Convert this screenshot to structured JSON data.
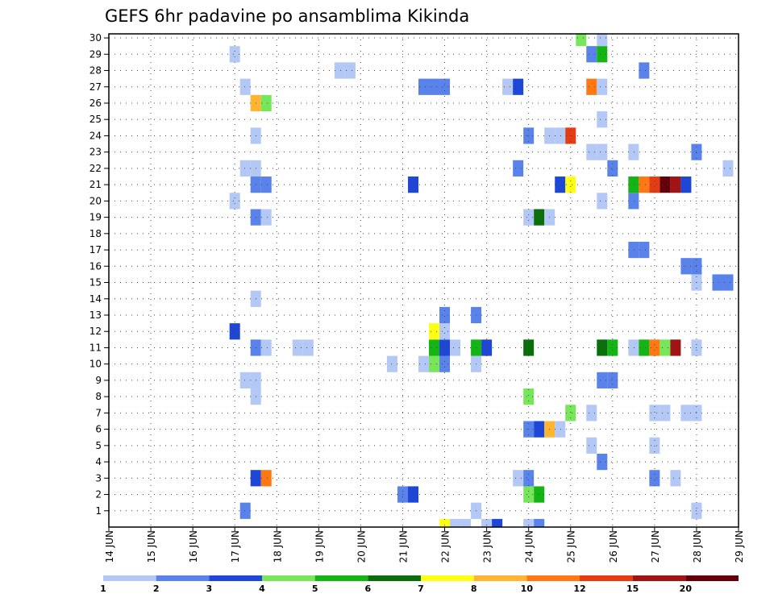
{
  "chart_data": {
    "type": "heatmap",
    "title": "GEFS 6hr padavine po ansamblima Kikinda",
    "x_tick_labels": [
      "14 JUN",
      "15 JUN",
      "16 JUN",
      "17 JUN",
      "18 JUN",
      "19 JUN",
      "20 JUN",
      "21 JUN",
      "22 JUN",
      "23 JUN",
      "24 JUN",
      "25 JUN",
      "26 JUN",
      "27 JUN",
      "28 JUN",
      "29 JUN"
    ],
    "y_tick_labels": [
      1,
      2,
      3,
      4,
      5,
      6,
      7,
      8,
      9,
      10,
      11,
      12,
      13,
      14,
      15,
      16,
      17,
      18,
      19,
      20,
      21,
      22,
      23,
      24,
      25,
      26,
      27,
      28,
      29,
      30
    ],
    "xlim_days": [
      14,
      29
    ],
    "ylim": [
      0,
      30
    ],
    "grid": true,
    "legend": {
      "position": "bottom",
      "labels": [
        "1",
        "2",
        "3",
        "4",
        "5",
        "6",
        "7",
        "8",
        "10",
        "12",
        "15",
        "20"
      ],
      "colors": [
        "#b4c8f5",
        "#5a82eb",
        "#1e46d7",
        "#78e65a",
        "#14b414",
        "#0a6e0a",
        "#ffff14",
        "#ffb432",
        "#ff7814",
        "#e63c14",
        "#a01414",
        "#64000a"
      ]
    },
    "cells": [
      {
        "day": 22.0,
        "member": 0,
        "level": 7
      },
      {
        "day": 22.25,
        "member": 0,
        "level": 1
      },
      {
        "day": 22.5,
        "member": 0,
        "level": 1
      },
      {
        "day": 23.0,
        "member": 0,
        "level": 1
      },
      {
        "day": 23.25,
        "member": 0,
        "level": 3
      },
      {
        "day": 24.0,
        "member": 0,
        "level": 1
      },
      {
        "day": 24.25,
        "member": 0,
        "level": 2
      },
      {
        "day": 17.25,
        "member": 1,
        "level": 2
      },
      {
        "day": 22.75,
        "member": 1,
        "level": 1
      },
      {
        "day": 28.0,
        "member": 1,
        "level": 1
      },
      {
        "day": 21.0,
        "member": 2,
        "level": 2
      },
      {
        "day": 21.25,
        "member": 2,
        "level": 3
      },
      {
        "day": 24.0,
        "member": 2,
        "level": 4
      },
      {
        "day": 24.25,
        "member": 2,
        "level": 5
      },
      {
        "day": 17.5,
        "member": 3,
        "level": 3
      },
      {
        "day": 17.75,
        "member": 3,
        "level": 9
      },
      {
        "day": 23.75,
        "member": 3,
        "level": 1
      },
      {
        "day": 24.0,
        "member": 3,
        "level": 2
      },
      {
        "day": 27.0,
        "member": 3,
        "level": 2
      },
      {
        "day": 27.5,
        "member": 3,
        "level": 1
      },
      {
        "day": 25.75,
        "member": 4,
        "level": 2
      },
      {
        "day": 25.5,
        "member": 5,
        "level": 1
      },
      {
        "day": 27.0,
        "member": 5,
        "level": 1
      },
      {
        "day": 24.0,
        "member": 6,
        "level": 2
      },
      {
        "day": 24.25,
        "member": 6,
        "level": 3
      },
      {
        "day": 24.5,
        "member": 6,
        "level": 8
      },
      {
        "day": 24.75,
        "member": 6,
        "level": 1
      },
      {
        "day": 25.0,
        "member": 7,
        "level": 4
      },
      {
        "day": 25.5,
        "member": 7,
        "level": 1
      },
      {
        "day": 27.0,
        "member": 7,
        "level": 1
      },
      {
        "day": 27.25,
        "member": 7,
        "level": 1
      },
      {
        "day": 27.75,
        "member": 7,
        "level": 1
      },
      {
        "day": 28.0,
        "member": 7,
        "level": 1
      },
      {
        "day": 17.5,
        "member": 8,
        "level": 1
      },
      {
        "day": 24.0,
        "member": 8,
        "level": 4
      },
      {
        "day": 17.25,
        "member": 9,
        "level": 1
      },
      {
        "day": 17.5,
        "member": 9,
        "level": 1
      },
      {
        "day": 25.75,
        "member": 9,
        "level": 2
      },
      {
        "day": 26.0,
        "member": 9,
        "level": 2
      },
      {
        "day": 20.75,
        "member": 10,
        "level": 1
      },
      {
        "day": 21.5,
        "member": 10,
        "level": 1
      },
      {
        "day": 21.75,
        "member": 10,
        "level": 4
      },
      {
        "day": 22.0,
        "member": 10,
        "level": 2
      },
      {
        "day": 22.75,
        "member": 10,
        "level": 1
      },
      {
        "day": 17.5,
        "member": 11,
        "level": 2
      },
      {
        "day": 17.75,
        "member": 11,
        "level": 1
      },
      {
        "day": 18.5,
        "member": 11,
        "level": 1
      },
      {
        "day": 18.75,
        "member": 11,
        "level": 1
      },
      {
        "day": 21.75,
        "member": 11,
        "level": 5
      },
      {
        "day": 22.0,
        "member": 11,
        "level": 3
      },
      {
        "day": 22.25,
        "member": 11,
        "level": 1
      },
      {
        "day": 22.75,
        "member": 11,
        "level": 5
      },
      {
        "day": 23.0,
        "member": 11,
        "level": 3
      },
      {
        "day": 24.0,
        "member": 11,
        "level": 6
      },
      {
        "day": 25.75,
        "member": 11,
        "level": 6
      },
      {
        "day": 26.0,
        "member": 11,
        "level": 5
      },
      {
        "day": 26.5,
        "member": 11,
        "level": 1
      },
      {
        "day": 26.75,
        "member": 11,
        "level": 5
      },
      {
        "day": 27.0,
        "member": 11,
        "level": 9
      },
      {
        "day": 27.25,
        "member": 11,
        "level": 4
      },
      {
        "day": 27.5,
        "member": 11,
        "level": 11
      },
      {
        "day": 28.0,
        "member": 11,
        "level": 1
      },
      {
        "day": 17.0,
        "member": 12,
        "level": 3
      },
      {
        "day": 21.75,
        "member": 12,
        "level": 7
      },
      {
        "day": 22.0,
        "member": 12,
        "level": 1
      },
      {
        "day": 22.0,
        "member": 13,
        "level": 2
      },
      {
        "day": 22.75,
        "member": 13,
        "level": 2
      },
      {
        "day": 17.5,
        "member": 14,
        "level": 1
      },
      {
        "day": 28.0,
        "member": 15,
        "level": 1
      },
      {
        "day": 28.5,
        "member": 15,
        "level": 2
      },
      {
        "day": 28.75,
        "member": 15,
        "level": 2
      },
      {
        "day": 27.75,
        "member": 16,
        "level": 2
      },
      {
        "day": 28.0,
        "member": 16,
        "level": 2
      },
      {
        "day": 26.5,
        "member": 17,
        "level": 2
      },
      {
        "day": 26.75,
        "member": 17,
        "level": 2
      },
      {
        "day": 24.0,
        "member": 19,
        "level": 1
      },
      {
        "day": 24.25,
        "member": 19,
        "level": 6
      },
      {
        "day": 24.5,
        "member": 19,
        "level": 1
      },
      {
        "day": 17.5,
        "member": 19,
        "level": 2
      },
      {
        "day": 17.75,
        "member": 19,
        "level": 1
      },
      {
        "day": 17.0,
        "member": 20,
        "level": 1
      },
      {
        "day": 25.75,
        "member": 20,
        "level": 1
      },
      {
        "day": 26.5,
        "member": 20,
        "level": 2
      },
      {
        "day": 17.5,
        "member": 21,
        "level": 2
      },
      {
        "day": 17.75,
        "member": 21,
        "level": 2
      },
      {
        "day": 21.25,
        "member": 21,
        "level": 3
      },
      {
        "day": 24.75,
        "member": 21,
        "level": 3
      },
      {
        "day": 25.0,
        "member": 21,
        "level": 7
      },
      {
        "day": 26.5,
        "member": 21,
        "level": 5
      },
      {
        "day": 26.75,
        "member": 21,
        "level": 9
      },
      {
        "day": 27.0,
        "member": 21,
        "level": 10
      },
      {
        "day": 27.25,
        "member": 21,
        "level": 12
      },
      {
        "day": 27.5,
        "member": 21,
        "level": 11
      },
      {
        "day": 27.75,
        "member": 21,
        "level": 3
      },
      {
        "day": 17.25,
        "member": 22,
        "level": 1
      },
      {
        "day": 17.5,
        "member": 22,
        "level": 1
      },
      {
        "day": 23.75,
        "member": 22,
        "level": 2
      },
      {
        "day": 26.0,
        "member": 22,
        "level": 2
      },
      {
        "day": 28.75,
        "member": 22,
        "level": 1
      },
      {
        "day": 25.5,
        "member": 23,
        "level": 1
      },
      {
        "day": 25.75,
        "member": 23,
        "level": 1
      },
      {
        "day": 26.5,
        "member": 23,
        "level": 1
      },
      {
        "day": 28.0,
        "member": 23,
        "level": 2
      },
      {
        "day": 17.5,
        "member": 24,
        "level": 1
      },
      {
        "day": 24.0,
        "member": 24,
        "level": 2
      },
      {
        "day": 24.5,
        "member": 24,
        "level": 1
      },
      {
        "day": 24.75,
        "member": 24,
        "level": 1
      },
      {
        "day": 25.0,
        "member": 24,
        "level": 10
      },
      {
        "day": 25.75,
        "member": 25,
        "level": 1
      },
      {
        "day": 17.5,
        "member": 26,
        "level": 8
      },
      {
        "day": 17.75,
        "member": 26,
        "level": 4
      },
      {
        "day": 17.25,
        "member": 27,
        "level": 1
      },
      {
        "day": 21.5,
        "member": 27,
        "level": 2
      },
      {
        "day": 21.75,
        "member": 27,
        "level": 2
      },
      {
        "day": 22.0,
        "member": 27,
        "level": 2
      },
      {
        "day": 23.5,
        "member": 27,
        "level": 1
      },
      {
        "day": 23.75,
        "member": 27,
        "level": 3
      },
      {
        "day": 25.5,
        "member": 27,
        "level": 9
      },
      {
        "day": 25.75,
        "member": 27,
        "level": 1
      },
      {
        "day": 19.5,
        "member": 28,
        "level": 1
      },
      {
        "day": 19.75,
        "member": 28,
        "level": 1
      },
      {
        "day": 26.75,
        "member": 28,
        "level": 2
      },
      {
        "day": 17.0,
        "member": 29,
        "level": 1
      },
      {
        "day": 25.5,
        "member": 29,
        "level": 2
      },
      {
        "day": 25.75,
        "member": 29,
        "level": 5
      },
      {
        "day": 25.25,
        "member": 30,
        "level": 4
      },
      {
        "day": 25.75,
        "member": 30,
        "level": 1
      }
    ]
  }
}
